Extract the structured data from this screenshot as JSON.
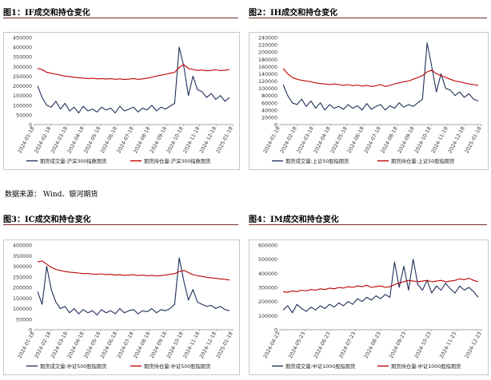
{
  "titles": {
    "p1": "图1：IF成交和持仓变化",
    "p2": "图2：IH成交和持仓变化",
    "p3": "图3：IC成交和持仓变化",
    "p4": "图4：IM成交和持仓变化"
  },
  "source": "数据来源：  Wind、银河期货",
  "chart_data": [
    {
      "type": "line",
      "ylim": [
        0,
        450000
      ],
      "yticks": [
        0,
        50000,
        100000,
        150000,
        200000,
        250000,
        300000,
        350000,
        400000,
        450000
      ],
      "x_labels": [
        "2024-01-18",
        "2024-02-18",
        "2024-03-18",
        "2024-04-18",
        "2024-05-18",
        "2024-06-18",
        "2024-07-18",
        "2024-08-18",
        "2024-09-18",
        "2024-10-18",
        "2024-11-18",
        "2024-12-18",
        "2025-01-18"
      ],
      "series": [
        {
          "name": "期货成交量:沪深300指数期货",
          "color": "#1f2f5a",
          "values": [
            200000,
            140000,
            100000,
            90000,
            120000,
            80000,
            110000,
            70000,
            90000,
            60000,
            95000,
            70000,
            80000,
            65000,
            90000,
            75000,
            85000,
            60000,
            95000,
            70000,
            80000,
            90000,
            65000,
            85000,
            75000,
            100000,
            70000,
            90000,
            80000,
            95000,
            110000,
            400000,
            300000,
            150000,
            250000,
            180000,
            170000,
            140000,
            160000,
            130000,
            150000,
            120000,
            140000
          ]
        },
        {
          "name": "期货持仓量:沪深300指数期货",
          "color": "#c00000",
          "values": [
            290000,
            285000,
            270000,
            265000,
            260000,
            255000,
            250000,
            248000,
            245000,
            242000,
            240000,
            238000,
            240000,
            236000,
            238000,
            235000,
            237000,
            234000,
            236000,
            233000,
            235000,
            238000,
            234000,
            236000,
            240000,
            245000,
            250000,
            255000,
            260000,
            265000,
            270000,
            295000,
            310000,
            290000,
            285000,
            280000,
            282000,
            278000,
            280000,
            283000,
            279000,
            281000,
            285000
          ]
        }
      ]
    },
    {
      "type": "line",
      "ylim": [
        0,
        240000
      ],
      "yticks": [
        0,
        20000,
        40000,
        60000,
        80000,
        100000,
        120000,
        140000,
        160000,
        180000,
        200000,
        220000,
        240000
      ],
      "x_labels": [
        "2024-01-18",
        "2024-02-18",
        "2024-03-18",
        "2024-04-18",
        "2024-05-18",
        "2024-06-18",
        "2024-07-18",
        "2024-08-18",
        "2024-09-18",
        "2024-10-18",
        "2024-11-18",
        "2024-12-18",
        "2025-01-18"
      ],
      "series": [
        {
          "name": "期货成交量:上证50股指期货",
          "color": "#1f2f5a",
          "values": [
            110000,
            80000,
            60000,
            55000,
            70000,
            50000,
            65000,
            45000,
            60000,
            40000,
            55000,
            45000,
            50000,
            42000,
            55000,
            45000,
            52000,
            40000,
            58000,
            42000,
            50000,
            55000,
            40000,
            52000,
            45000,
            60000,
            48000,
            55000,
            50000,
            60000,
            70000,
            225000,
            160000,
            90000,
            140000,
            100000,
            95000,
            80000,
            90000,
            75000,
            85000,
            70000,
            65000
          ]
        },
        {
          "name": "期货持仓量:上证50股指期货",
          "color": "#c00000",
          "values": [
            155000,
            140000,
            130000,
            125000,
            122000,
            120000,
            118000,
            115000,
            113000,
            112000,
            110000,
            112000,
            110000,
            108000,
            110000,
            107000,
            109000,
            106000,
            108000,
            105000,
            107000,
            110000,
            105000,
            108000,
            112000,
            115000,
            118000,
            120000,
            125000,
            130000,
            135000,
            145000,
            150000,
            140000,
            135000,
            130000,
            125000,
            120000,
            118000,
            115000,
            112000,
            110000,
            108000
          ]
        }
      ]
    },
    {
      "type": "line",
      "ylim": [
        0,
        400000
      ],
      "yticks": [
        0,
        50000,
        100000,
        150000,
        200000,
        250000,
        300000,
        350000,
        400000
      ],
      "x_labels": [
        "2024-01-18",
        "2024-02-18",
        "2024-03-18",
        "2024-04-18",
        "2024-05-18",
        "2024-06-18",
        "2024-07-18",
        "2024-08-18",
        "2024-09-18",
        "2024-10-18",
        "2024-11-18",
        "2024-12-18",
        "2025-01-18"
      ],
      "series": [
        {
          "name": "期货成交量:中证500股指期货",
          "color": "#1f2f5a",
          "values": [
            180000,
            120000,
            300000,
            190000,
            130000,
            100000,
            110000,
            80000,
            100000,
            75000,
            95000,
            80000,
            90000,
            70000,
            95000,
            80000,
            90000,
            75000,
            100000,
            80000,
            90000,
            95000,
            75000,
            90000,
            85000,
            100000,
            80000,
            95000,
            90000,
            100000,
            120000,
            340000,
            230000,
            140000,
            190000,
            130000,
            120000,
            110000,
            115000,
            100000,
            110000,
            95000,
            90000
          ]
        },
        {
          "name": "期货持仓量:中证500股指期货",
          "color": "#c00000",
          "values": [
            320000,
            325000,
            310000,
            295000,
            285000,
            280000,
            275000,
            272000,
            270000,
            268000,
            265000,
            266000,
            263000,
            262000,
            264000,
            260000,
            262000,
            258000,
            260000,
            257000,
            258000,
            260000,
            256000,
            258000,
            255000,
            257000,
            254000,
            256000,
            258000,
            262000,
            265000,
            275000,
            280000,
            270000,
            260000,
            255000,
            252000,
            248000,
            245000,
            243000,
            240000,
            238000,
            235000
          ]
        }
      ]
    },
    {
      "type": "line",
      "ylim": [
        0,
        600000
      ],
      "yticks": [
        0,
        100000,
        200000,
        300000,
        400000,
        500000,
        600000
      ],
      "x_labels": [
        "2024-04-23",
        "2024-05-23",
        "2024-06-23",
        "2024-07-23",
        "2024-08-23",
        "2024-09-23",
        "2024-10-23",
        "2024-11-23",
        "2024-12-23"
      ],
      "series": [
        {
          "name": "期货成交量:中证1000股指期货",
          "color": "#1f2f5a",
          "values": [
            140000,
            170000,
            120000,
            180000,
            150000,
            130000,
            160000,
            140000,
            170000,
            150000,
            180000,
            160000,
            190000,
            170000,
            200000,
            180000,
            220000,
            200000,
            230000,
            210000,
            240000,
            220000,
            250000,
            230000,
            480000,
            300000,
            450000,
            280000,
            500000,
            320000,
            280000,
            350000,
            260000,
            310000,
            280000,
            330000,
            290000,
            260000,
            310000,
            280000,
            300000,
            270000,
            230000
          ]
        },
        {
          "name": "期货持仓量:中证1000股指期货",
          "color": "#c00000",
          "values": [
            270000,
            265000,
            275000,
            270000,
            280000,
            275000,
            285000,
            280000,
            290000,
            285000,
            295000,
            290000,
            300000,
            295000,
            305000,
            300000,
            310000,
            305000,
            315000,
            300000,
            305000,
            310000,
            300000,
            305000,
            320000,
            330000,
            340000,
            350000,
            345000,
            340000,
            345000,
            350000,
            340000,
            345000,
            350000,
            340000,
            345000,
            350000,
            360000,
            355000,
            365000,
            350000,
            340000
          ]
        }
      ]
    }
  ]
}
